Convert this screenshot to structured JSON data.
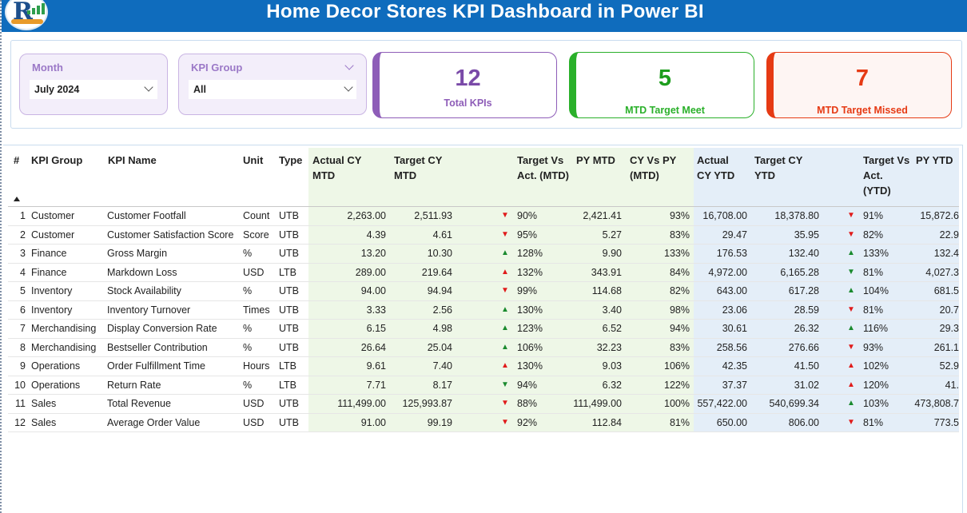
{
  "header": {
    "title": "Home Decor Stores KPI Dashboard in Power BI"
  },
  "filters": {
    "month": {
      "label": "Month",
      "value": "July 2024"
    },
    "kpi_group": {
      "label": "KPI Group",
      "value": "All"
    }
  },
  "cards": {
    "total": {
      "value": "12",
      "label": "Total KPIs"
    },
    "met": {
      "value": "5",
      "label": "MTD Target Meet"
    },
    "missed": {
      "value": "7",
      "label": "MTD Target Missed"
    }
  },
  "colors": {
    "header": "#0f6cbd",
    "purple": "#8e5db8",
    "green": "#2ab02a",
    "red": "#e63a14",
    "mtd_band": "#eef7e7",
    "ytd_band": "#e4eef8"
  },
  "table": {
    "headers": {
      "num": "#",
      "group": "KPI Group",
      "name": "KPI Name",
      "unit": "Unit",
      "type": "Type",
      "cy_mtd": "Actual CY MTD",
      "tgt_mtd": "Target CY MTD",
      "tva_mtd": "Target Vs Act. (MTD)",
      "py_mtd": "PY MTD",
      "cyvpy_mtd": "CY Vs PY (MTD)",
      "cy_ytd": "Actual CY YTD",
      "tgt_ytd": "Target CY YTD",
      "tva_ytd": "Target Vs Act. (YTD)",
      "py_ytd": "PY YTD"
    },
    "rows": [
      {
        "n": "1",
        "group": "Customer",
        "name": "Customer Footfall",
        "unit": "Count",
        "type": "UTB",
        "cy_mtd": "2,263.00",
        "tgt_mtd": "2,511.93",
        "mtd_dir": "down",
        "mtd_color": "red",
        "tva_mtd": "90%",
        "py_mtd": "2,421.41",
        "cyvpy": "93%",
        "cy_ytd": "16,708.00",
        "tgt_ytd": "18,378.80",
        "ytd_dir": "down",
        "ytd_color": "red",
        "tva_ytd": "91%",
        "py_ytd": "15,872.6"
      },
      {
        "n": "2",
        "group": "Customer",
        "name": "Customer Satisfaction Score",
        "unit": "Score",
        "type": "UTB",
        "cy_mtd": "4.39",
        "tgt_mtd": "4.61",
        "mtd_dir": "down",
        "mtd_color": "red",
        "tva_mtd": "95%",
        "py_mtd": "5.27",
        "cyvpy": "83%",
        "cy_ytd": "29.47",
        "tgt_ytd": "35.95",
        "ytd_dir": "down",
        "ytd_color": "red",
        "tva_ytd": "82%",
        "py_ytd": "22.9"
      },
      {
        "n": "3",
        "group": "Finance",
        "name": "Gross Margin",
        "unit": "%",
        "type": "UTB",
        "cy_mtd": "13.20",
        "tgt_mtd": "10.30",
        "mtd_dir": "up",
        "mtd_color": "green",
        "tva_mtd": "128%",
        "py_mtd": "9.90",
        "cyvpy": "133%",
        "cy_ytd": "176.53",
        "tgt_ytd": "132.40",
        "ytd_dir": "up",
        "ytd_color": "green",
        "tva_ytd": "133%",
        "py_ytd": "132.4"
      },
      {
        "n": "4",
        "group": "Finance",
        "name": "Markdown Loss",
        "unit": "USD",
        "type": "LTB",
        "cy_mtd": "289.00",
        "tgt_mtd": "219.64",
        "mtd_dir": "up",
        "mtd_color": "red",
        "tva_mtd": "132%",
        "py_mtd": "343.91",
        "cyvpy": "84%",
        "cy_ytd": "4,972.00",
        "tgt_ytd": "6,165.28",
        "ytd_dir": "down",
        "ytd_color": "green",
        "tva_ytd": "81%",
        "py_ytd": "4,027.3"
      },
      {
        "n": "5",
        "group": "Inventory",
        "name": "Stock Availability",
        "unit": "%",
        "type": "UTB",
        "cy_mtd": "94.00",
        "tgt_mtd": "94.94",
        "mtd_dir": "down",
        "mtd_color": "red",
        "tva_mtd": "99%",
        "py_mtd": "114.68",
        "cyvpy": "82%",
        "cy_ytd": "643.00",
        "tgt_ytd": "617.28",
        "ytd_dir": "up",
        "ytd_color": "green",
        "tva_ytd": "104%",
        "py_ytd": "681.5"
      },
      {
        "n": "6",
        "group": "Inventory",
        "name": "Inventory Turnover",
        "unit": "Times",
        "type": "UTB",
        "cy_mtd": "3.33",
        "tgt_mtd": "2.56",
        "mtd_dir": "up",
        "mtd_color": "green",
        "tva_mtd": "130%",
        "py_mtd": "3.40",
        "cyvpy": "98%",
        "cy_ytd": "23.06",
        "tgt_ytd": "28.59",
        "ytd_dir": "down",
        "ytd_color": "red",
        "tva_ytd": "81%",
        "py_ytd": "20.7"
      },
      {
        "n": "7",
        "group": "Merchandising",
        "name": "Display Conversion Rate",
        "unit": "%",
        "type": "UTB",
        "cy_mtd": "6.15",
        "tgt_mtd": "4.98",
        "mtd_dir": "up",
        "mtd_color": "green",
        "tva_mtd": "123%",
        "py_mtd": "6.52",
        "cyvpy": "94%",
        "cy_ytd": "30.61",
        "tgt_ytd": "26.32",
        "ytd_dir": "up",
        "ytd_color": "green",
        "tva_ytd": "116%",
        "py_ytd": "29.3"
      },
      {
        "n": "8",
        "group": "Merchandising",
        "name": "Bestseller Contribution",
        "unit": "%",
        "type": "UTB",
        "cy_mtd": "26.64",
        "tgt_mtd": "25.04",
        "mtd_dir": "up",
        "mtd_color": "green",
        "tva_mtd": "106%",
        "py_mtd": "32.23",
        "cyvpy": "83%",
        "cy_ytd": "258.56",
        "tgt_ytd": "276.66",
        "ytd_dir": "down",
        "ytd_color": "red",
        "tva_ytd": "93%",
        "py_ytd": "261.1"
      },
      {
        "n": "9",
        "group": "Operations",
        "name": "Order Fulfillment Time",
        "unit": "Hours",
        "type": "LTB",
        "cy_mtd": "9.61",
        "tgt_mtd": "7.40",
        "mtd_dir": "up",
        "mtd_color": "red",
        "tva_mtd": "130%",
        "py_mtd": "9.03",
        "cyvpy": "106%",
        "cy_ytd": "42.35",
        "tgt_ytd": "41.50",
        "ytd_dir": "up",
        "ytd_color": "red",
        "tva_ytd": "102%",
        "py_ytd": "52.9"
      },
      {
        "n": "10",
        "group": "Operations",
        "name": "Return Rate",
        "unit": "%",
        "type": "LTB",
        "cy_mtd": "7.71",
        "tgt_mtd": "8.17",
        "mtd_dir": "down",
        "mtd_color": "green",
        "tva_mtd": "94%",
        "py_mtd": "6.32",
        "cyvpy": "122%",
        "cy_ytd": "37.37",
        "tgt_ytd": "31.02",
        "ytd_dir": "up",
        "ytd_color": "red",
        "tva_ytd": "120%",
        "py_ytd": "41."
      },
      {
        "n": "11",
        "group": "Sales",
        "name": "Total Revenue",
        "unit": "USD",
        "type": "UTB",
        "cy_mtd": "111,499.00",
        "tgt_mtd": "125,993.87",
        "mtd_dir": "down",
        "mtd_color": "red",
        "tva_mtd": "88%",
        "py_mtd": "111,499.00",
        "cyvpy": "100%",
        "cy_ytd": "557,422.00",
        "tgt_ytd": "540,699.34",
        "ytd_dir": "up",
        "ytd_color": "green",
        "tva_ytd": "103%",
        "py_ytd": "473,808.7"
      },
      {
        "n": "12",
        "group": "Sales",
        "name": "Average Order Value",
        "unit": "USD",
        "type": "UTB",
        "cy_mtd": "91.00",
        "tgt_mtd": "99.19",
        "mtd_dir": "down",
        "mtd_color": "red",
        "tva_mtd": "92%",
        "py_mtd": "112.84",
        "cyvpy": "81%",
        "cy_ytd": "650.00",
        "tgt_ytd": "806.00",
        "ytd_dir": "down",
        "ytd_color": "red",
        "tva_ytd": "81%",
        "py_ytd": "773.5"
      }
    ]
  }
}
